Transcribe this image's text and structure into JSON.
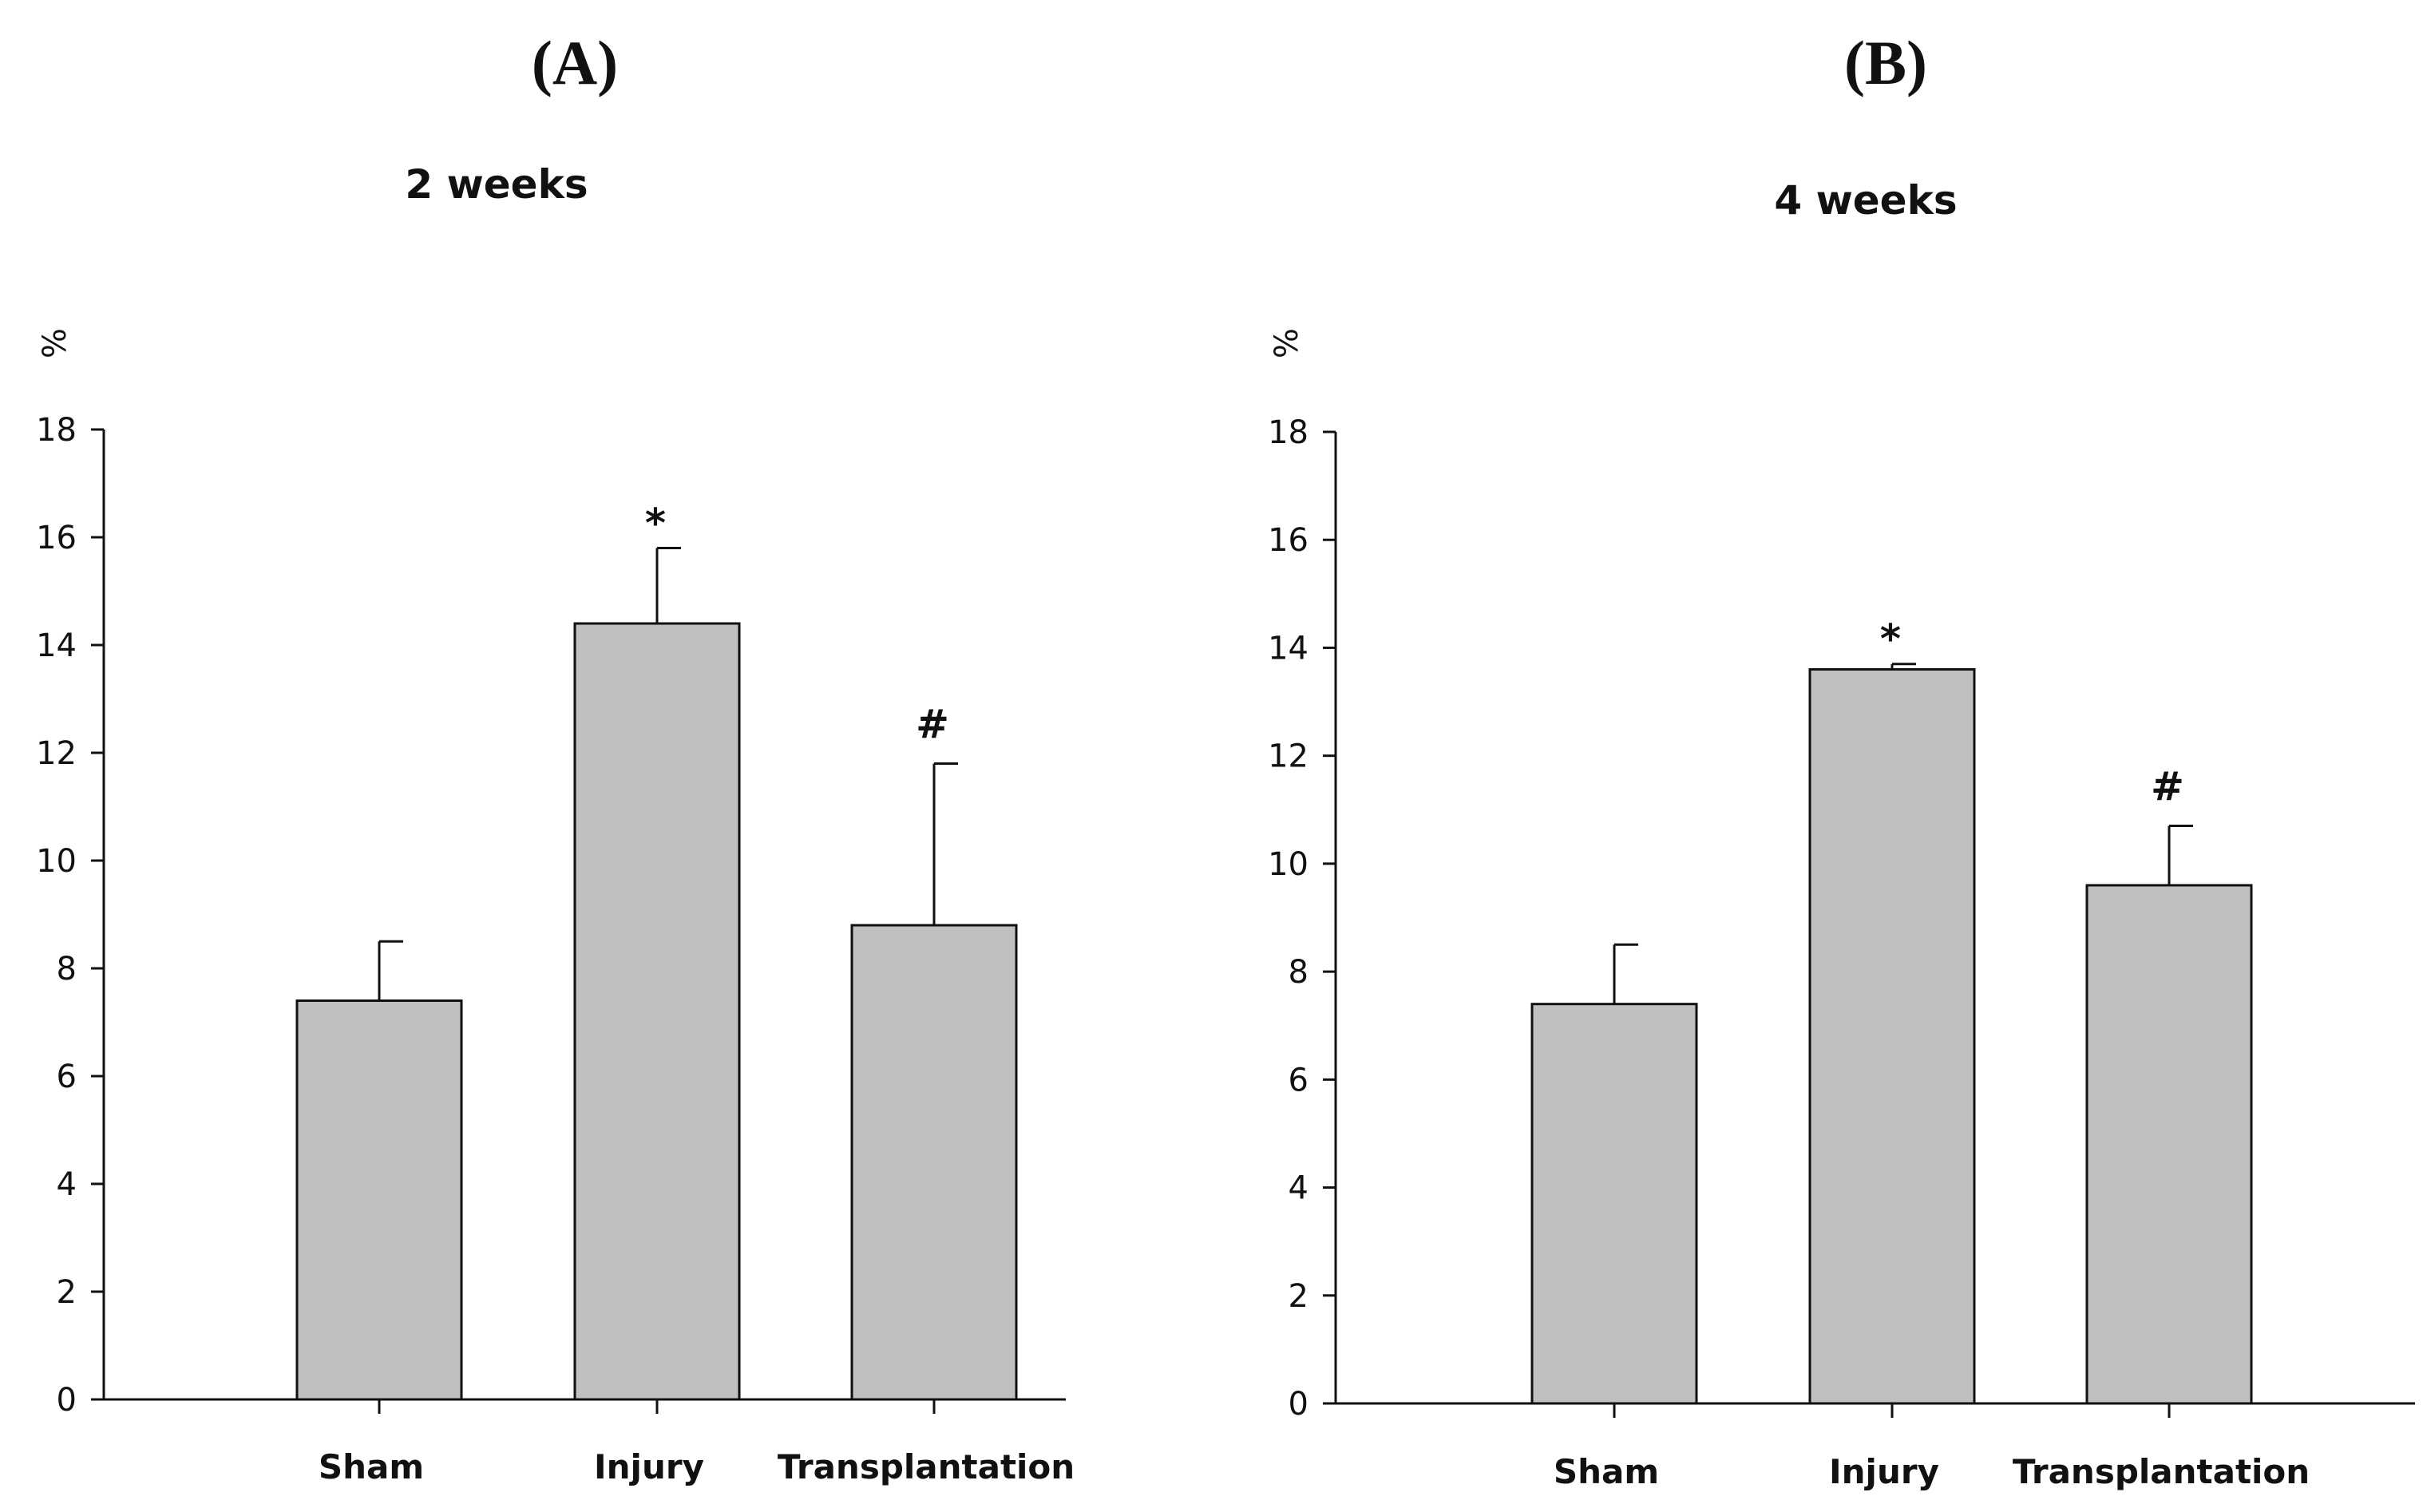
{
  "chart_data": [
    {
      "type": "bar",
      "panel": "(A)",
      "title": "2 weeks",
      "ylabel": "%",
      "xlabel": "",
      "categories": [
        "Sham",
        "Injury",
        "Transplantation"
      ],
      "values": [
        7.4,
        14.4,
        8.8
      ],
      "error_upper": [
        1.1,
        1.4,
        3.0
      ],
      "significance": [
        "",
        "*",
        "#"
      ],
      "ylim": [
        0,
        18
      ],
      "yticks": [
        0,
        2,
        4,
        6,
        8,
        10,
        12,
        14,
        16,
        18
      ],
      "yticklabels": [
        "0",
        "2",
        "4",
        "6",
        "8",
        "10",
        "12",
        "14",
        "16",
        "18"
      ],
      "bar_color": "#c0c0c0",
      "grid": false
    },
    {
      "type": "bar",
      "panel": "(B)",
      "title": "4 weeks",
      "ylabel": "%",
      "xlabel": "",
      "categories": [
        "Sham",
        "Injury",
        "Transplantation"
      ],
      "values": [
        7.4,
        13.6,
        9.6
      ],
      "error_upper": [
        1.1,
        0.1,
        1.1
      ],
      "significance": [
        "",
        "*",
        "#"
      ],
      "ylim": [
        0,
        18
      ],
      "yticks": [
        0,
        2,
        4,
        6,
        8,
        10,
        12,
        14,
        16,
        18
      ],
      "yticklabels": [
        "0",
        "2",
        "4",
        "6",
        "8",
        "10",
        "12",
        "14",
        "16",
        "18"
      ],
      "bar_color": "#c0c0c0",
      "grid": false
    }
  ]
}
